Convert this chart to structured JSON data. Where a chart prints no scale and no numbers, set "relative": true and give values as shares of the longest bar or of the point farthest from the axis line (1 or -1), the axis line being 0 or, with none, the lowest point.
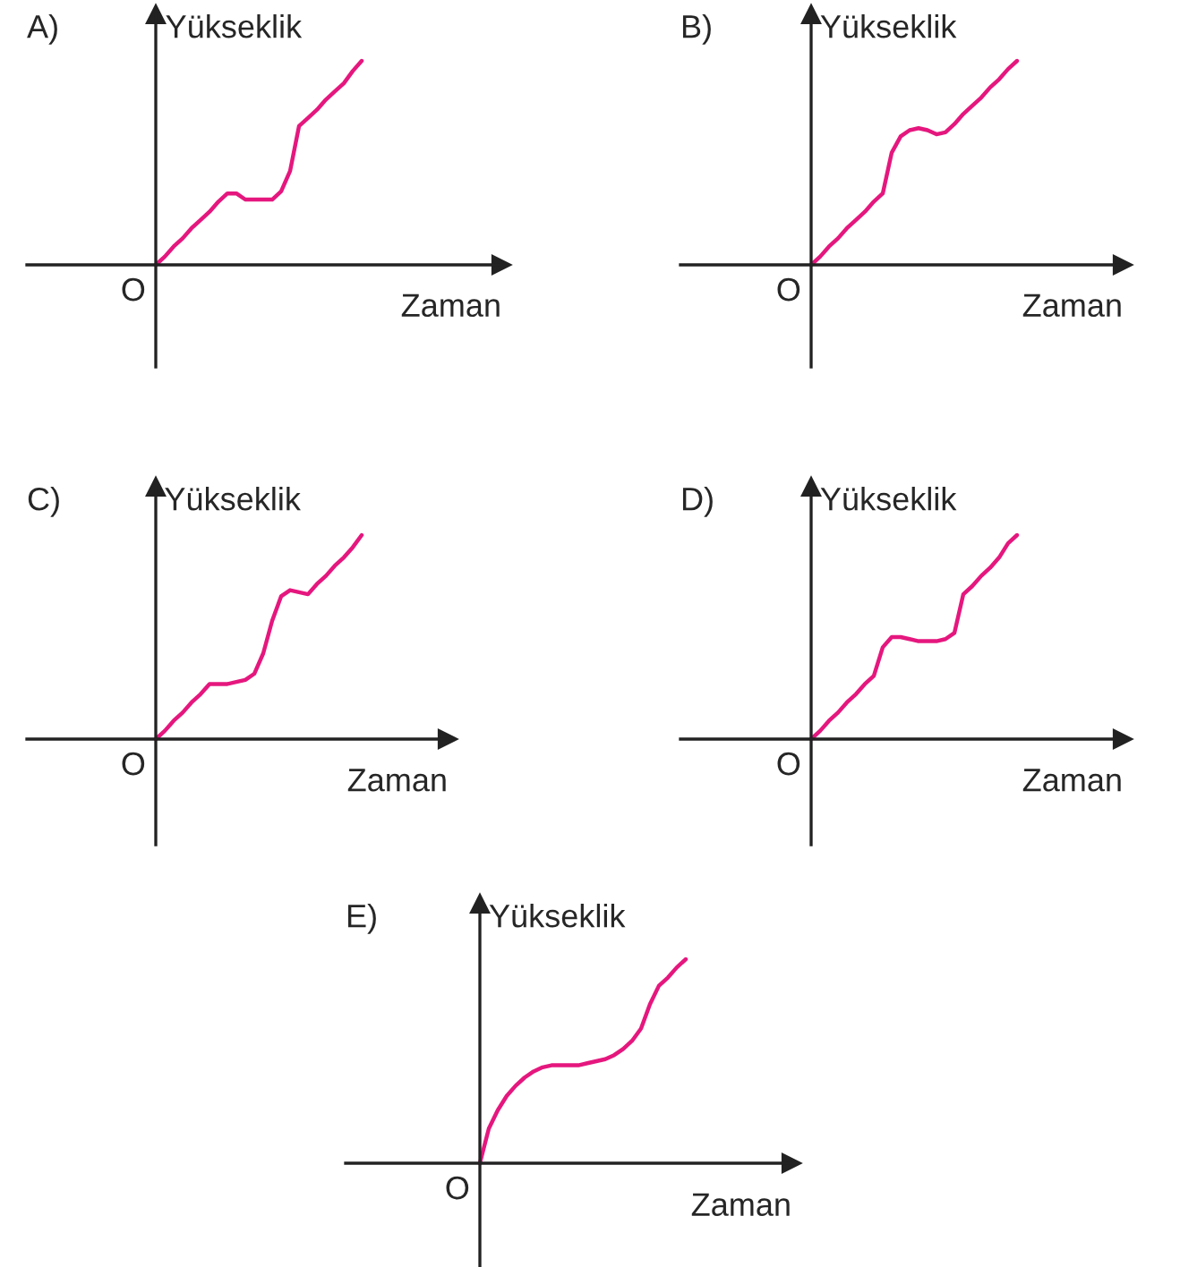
{
  "chart_data": [
    {
      "type": "line",
      "title": "A)",
      "xlabel": "Zaman",
      "ylabel": "Yükseklik",
      "annotations": [
        "O"
      ],
      "relative": true,
      "categories": [
        null,
        null,
        null,
        null,
        null,
        null,
        null,
        null,
        null,
        null,
        null,
        null,
        null,
        null,
        null,
        null,
        null,
        null,
        null,
        null,
        null,
        null,
        null,
        null
      ],
      "series": [
        {
          "color": "#e5177e",
          "values": [
            0,
            0.04,
            0.09,
            0.13,
            0.18,
            0.22,
            0.26,
            0.31,
            0.35,
            0.35,
            0.32,
            0.32,
            0.32,
            0.32,
            0.36,
            0.46,
            0.68,
            0.72,
            0.76,
            0.81,
            0.85,
            0.89,
            0.95,
            1
          ]
        }
      ]
    },
    {
      "type": "line",
      "title": "B)",
      "xlabel": "Zaman",
      "ylabel": "Yükseklik",
      "annotations": [
        "O"
      ],
      "relative": true,
      "categories": [
        null,
        null,
        null,
        null,
        null,
        null,
        null,
        null,
        null,
        null,
        null,
        null,
        null,
        null,
        null,
        null,
        null,
        null,
        null,
        null,
        null,
        null,
        null,
        null
      ],
      "series": [
        {
          "color": "#e5177e",
          "values": [
            0,
            0.04,
            0.09,
            0.13,
            0.18,
            0.22,
            0.26,
            0.31,
            0.35,
            0.55,
            0.63,
            0.66,
            0.67,
            0.66,
            0.64,
            0.65,
            0.69,
            0.74,
            0.78,
            0.82,
            0.87,
            0.91,
            0.96,
            1
          ]
        }
      ]
    },
    {
      "type": "line",
      "title": "C)",
      "xlabel": "Zaman",
      "ylabel": "Yükseklik",
      "annotations": [
        "O"
      ],
      "relative": true,
      "categories": [
        null,
        null,
        null,
        null,
        null,
        null,
        null,
        null,
        null,
        null,
        null,
        null,
        null,
        null,
        null,
        null,
        null,
        null,
        null,
        null,
        null,
        null,
        null,
        null
      ],
      "series": [
        {
          "color": "#e5177e",
          "values": [
            0,
            0.04,
            0.09,
            0.13,
            0.18,
            0.22,
            0.27,
            0.27,
            0.27,
            0.28,
            0.29,
            0.32,
            0.42,
            0.58,
            0.7,
            0.73,
            0.72,
            0.71,
            0.76,
            0.8,
            0.85,
            0.89,
            0.94,
            1
          ]
        }
      ]
    },
    {
      "type": "line",
      "title": "D)",
      "xlabel": "Zaman",
      "ylabel": "Yükseklik",
      "annotations": [
        "O"
      ],
      "relative": true,
      "categories": [
        null,
        null,
        null,
        null,
        null,
        null,
        null,
        null,
        null,
        null,
        null,
        null,
        null,
        null,
        null,
        null,
        null,
        null,
        null,
        null,
        null,
        null,
        null,
        null
      ],
      "series": [
        {
          "color": "#e5177e",
          "values": [
            0,
            0.04,
            0.09,
            0.13,
            0.18,
            0.22,
            0.27,
            0.31,
            0.45,
            0.5,
            0.5,
            0.49,
            0.48,
            0.48,
            0.48,
            0.49,
            0.52,
            0.71,
            0.75,
            0.8,
            0.84,
            0.89,
            0.96,
            1
          ]
        }
      ]
    },
    {
      "type": "line",
      "title": "E)",
      "xlabel": "Zaman",
      "ylabel": "Yükseklik",
      "annotations": [
        "O"
      ],
      "relative": true,
      "categories": [
        null,
        null,
        null,
        null,
        null,
        null,
        null,
        null,
        null,
        null,
        null,
        null,
        null,
        null,
        null,
        null,
        null,
        null,
        null,
        null,
        null,
        null,
        null,
        null
      ],
      "series": [
        {
          "color": "#e5177e",
          "values": [
            0,
            0.17,
            0.26,
            0.33,
            0.38,
            0.42,
            0.45,
            0.47,
            0.48,
            0.48,
            0.48,
            0.48,
            0.49,
            0.5,
            0.51,
            0.53,
            0.56,
            0.6,
            0.66,
            0.78,
            0.87,
            0.91,
            0.96,
            1
          ]
        }
      ]
    }
  ]
}
